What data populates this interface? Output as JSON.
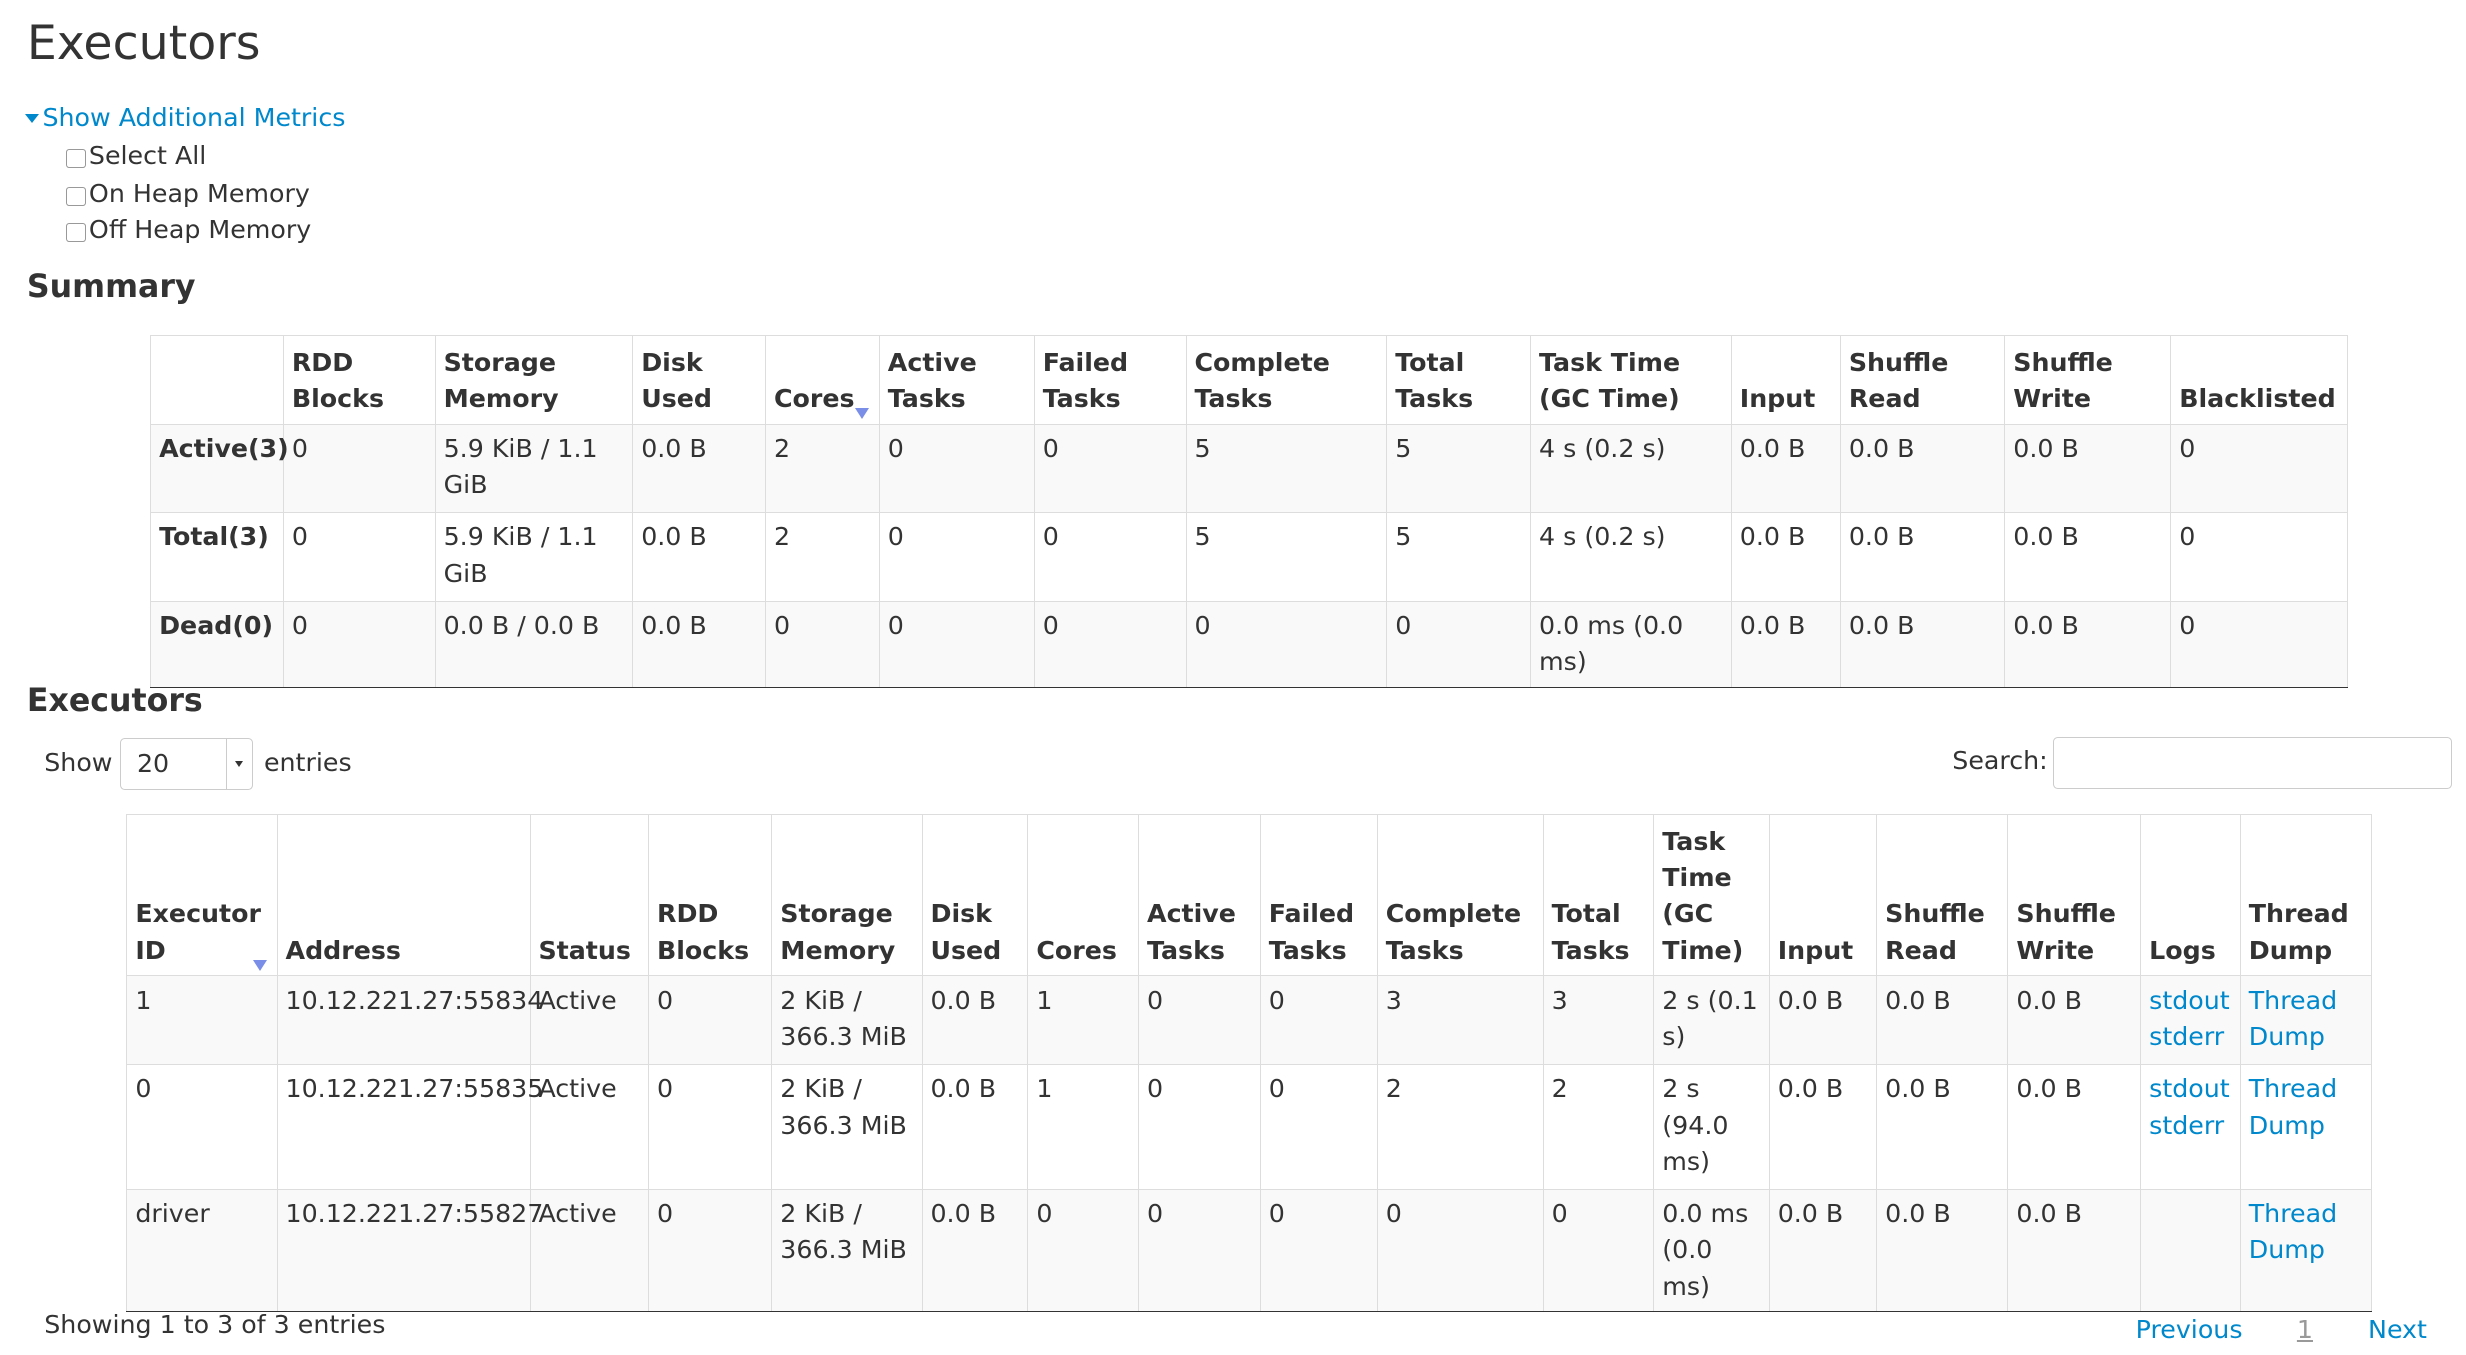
{
  "page_title": "Executors",
  "metrics": {
    "toggle_label": "Show Additional Metrics",
    "options": [
      {
        "label": "Select All",
        "checked": false
      },
      {
        "label": "On Heap Memory",
        "checked": false
      },
      {
        "label": "Off Heap Memory",
        "checked": false
      }
    ]
  },
  "summary": {
    "heading": "Summary",
    "columns": [
      "",
      "RDD Blocks",
      "Storage Memory",
      "Disk Used",
      "Cores",
      "Active Tasks",
      "Failed Tasks",
      "Complete Tasks",
      "Total Tasks",
      "Task Time (GC Time)",
      "Input",
      "Shuffle Read",
      "Shuffle Write",
      "Blacklisted"
    ],
    "rows": [
      [
        "Active(3)",
        "0",
        "5.9 KiB / 1.1 GiB",
        "0.0 B",
        "2",
        "0",
        "0",
        "5",
        "5",
        "4 s (0.2 s)",
        "0.0 B",
        "0.0 B",
        "0.0 B",
        "0"
      ],
      [
        "Total(3)",
        "0",
        "5.9 KiB / 1.1 GiB",
        "0.0 B",
        "2",
        "0",
        "0",
        "5",
        "5",
        "4 s (0.2 s)",
        "0.0 B",
        "0.0 B",
        "0.0 B",
        "0"
      ],
      [
        "Dead(0)",
        "0",
        "0.0 B / 0.0 B",
        "0.0 B",
        "0",
        "0",
        "0",
        "0",
        "0",
        "0.0 ms (0.0 ms)",
        "0.0 B",
        "0.0 B",
        "0.0 B",
        "0"
      ]
    ]
  },
  "executors": {
    "heading": "Executors",
    "show_label": "Show",
    "page_size": "20",
    "entries_label": "entries",
    "search_label": "Search:",
    "search_value": "",
    "columns": [
      "Executor ID",
      "Address",
      "Status",
      "RDD Blocks",
      "Storage Memory",
      "Disk Used",
      "Cores",
      "Active Tasks",
      "Failed Tasks",
      "Complete Tasks",
      "Total Tasks",
      "Task Time (GC Time)",
      "Input",
      "Shuffle Read",
      "Shuffle Write",
      "Logs",
      "Thread Dump"
    ],
    "rows": [
      [
        "1",
        "10.12.221.27:55834",
        "Active",
        "0",
        "2 KiB / 366.3 MiB",
        "0.0 B",
        "1",
        "0",
        "0",
        "3",
        "3",
        "2 s (0.1 s)",
        "0.0 B",
        "0.0 B",
        "0.0 B",
        "stdout",
        "stderr",
        "Thread Dump"
      ],
      [
        "0",
        "10.12.221.27:55835",
        "Active",
        "0",
        "2 KiB / 366.3 MiB",
        "0.0 B",
        "1",
        "0",
        "0",
        "2",
        "2",
        "2 s (94.0 ms)",
        "0.0 B",
        "0.0 B",
        "0.0 B",
        "stdout",
        "stderr",
        "Thread Dump"
      ],
      [
        "driver",
        "10.12.221.27:55827",
        "Active",
        "0",
        "2 KiB / 366.3 MiB",
        "0.0 B",
        "0",
        "0",
        "0",
        "0",
        "0",
        "0.0 ms (0.0 ms)",
        "0.0 B",
        "0.0 B",
        "0.0 B",
        "",
        "",
        "Thread Dump"
      ]
    ],
    "info": "Showing 1 to 3 of 3 entries",
    "pagination": {
      "previous": "Previous",
      "current": "1",
      "next": "Next"
    }
  },
  "colors": {
    "link": "#0088cc",
    "sort_arrow": "#7a8ee8"
  }
}
